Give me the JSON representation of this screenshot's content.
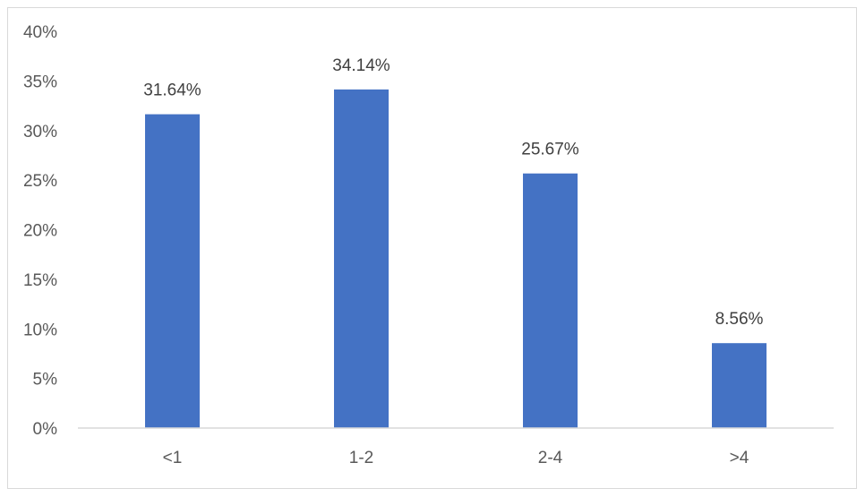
{
  "chart_data": {
    "type": "bar",
    "title": "",
    "xlabel": "",
    "ylabel": "",
    "categories": [
      "<1",
      "1-2",
      "2-4",
      ">4"
    ],
    "values": [
      31.64,
      34.14,
      25.67,
      8.56
    ],
    "data_labels": [
      "31.64%",
      "34.14%",
      "25.67%",
      "8.56%"
    ],
    "ylim": [
      0,
      40
    ],
    "y_ticks": [
      0,
      5,
      10,
      15,
      20,
      25,
      30,
      35,
      40
    ],
    "y_tick_labels": [
      "0%",
      "5%",
      "10%",
      "15%",
      "20%",
      "25%",
      "30%",
      "35%",
      "40%"
    ],
    "grid": false,
    "legend": "none",
    "bar_color": "#4472c4",
    "axis_color": "#d9d9d9"
  }
}
